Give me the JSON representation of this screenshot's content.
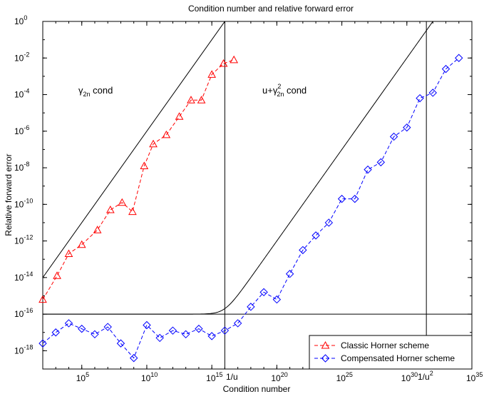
{
  "chart_data": {
    "type": "line",
    "title": "Condition number and relative forward error",
    "xlabel": "Condition number",
    "ylabel": "Relative forward error",
    "xscale": "log",
    "yscale": "log",
    "xlim_exp": [
      2,
      35
    ],
    "ylim_exp": [
      -19,
      0
    ],
    "xticks": [
      {
        "exp": 5,
        "base": "10",
        "sup": "5"
      },
      {
        "exp": 10,
        "base": "10",
        "sup": "10"
      },
      {
        "exp": 15,
        "base": "10",
        "sup": "15"
      },
      {
        "exp": 20,
        "base": "10",
        "sup": "20"
      },
      {
        "exp": 25,
        "base": "10",
        "sup": "25"
      },
      {
        "exp": 30,
        "base": "10",
        "sup": "30"
      },
      {
        "exp": 35,
        "base": "10",
        "sup": "35"
      }
    ],
    "yticks": [
      {
        "exp": 0,
        "text": "10",
        "sup": "0"
      },
      {
        "exp": -2,
        "text": "10",
        "sup": "-2"
      },
      {
        "exp": -4,
        "text": "10",
        "sup": "-4"
      },
      {
        "exp": -6,
        "text": "10",
        "sup": "-6"
      },
      {
        "exp": -8,
        "text": "10",
        "sup": "-8"
      },
      {
        "exp": -10,
        "text": "10",
        "sup": "-10"
      },
      {
        "exp": -12,
        "text": "10",
        "sup": "-12"
      },
      {
        "exp": -14,
        "text": "10",
        "sup": "-14"
      },
      {
        "exp": -16,
        "text": "10",
        "sup": "-16"
      },
      {
        "exp": -18,
        "text": "10",
        "sup": "-18"
      }
    ],
    "legend_position": "bottom-right",
    "grid": false,
    "series": [
      {
        "name": "Classic Horner scheme",
        "color": "#ff0000",
        "marker": "triangle",
        "line_style": "dashed",
        "log10_x": [
          2.0,
          3.1,
          4.0,
          5.0,
          6.2,
          7.2,
          8.1,
          8.9,
          9.8,
          10.5,
          11.5,
          12.5,
          13.4,
          14.2,
          15.0,
          15.9,
          16.7
        ],
        "log10_y": [
          -15.2,
          -13.9,
          -12.7,
          -12.2,
          -11.4,
          -10.3,
          -9.9,
          -10.4,
          -7.9,
          -6.7,
          -6.2,
          -5.2,
          -4.3,
          -4.3,
          -2.9,
          -2.3,
          -2.1
        ]
      },
      {
        "name": "Compensated Horner scheme",
        "color": "#0000ff",
        "marker": "diamond",
        "line_style": "dashed",
        "log10_x": [
          2.0,
          3.0,
          4.0,
          5.0,
          6.0,
          7.0,
          8.0,
          9.0,
          10.0,
          11.0,
          12.0,
          13.0,
          14.0,
          15.0,
          16.0,
          17.0,
          18.0,
          19.0,
          20.0,
          21.0,
          22.0,
          23.0,
          24.0,
          25.0,
          26.0,
          27.0,
          28.0,
          29.0,
          30.0,
          31.0,
          32.0,
          33.0,
          34.0
        ],
        "log10_y": [
          -17.6,
          -17.0,
          -16.5,
          -16.8,
          -17.1,
          -16.7,
          -17.6,
          -18.4,
          -16.6,
          -17.3,
          -16.9,
          -17.1,
          -16.8,
          -17.2,
          -16.9,
          -16.5,
          -15.6,
          -14.8,
          -15.2,
          -13.8,
          -12.5,
          -11.7,
          -11.0,
          -9.7,
          -9.7,
          -8.1,
          -7.7,
          -6.3,
          -5.8,
          -4.2,
          -3.9,
          -2.6,
          -2.0
        ]
      }
    ],
    "reference_lines": [
      {
        "kind": "power",
        "slope": 1,
        "offset": -16,
        "color": "#000000"
      },
      {
        "kind": "floor",
        "value_exp": -16,
        "color": "#000000"
      },
      {
        "kind": "curve",
        "color": "#000000"
      },
      {
        "kind": "vertical",
        "exp": 16.0,
        "color": "#000000"
      },
      {
        "kind": "vertical",
        "exp": 31.5,
        "color": "#000000"
      }
    ]
  },
  "annotations": {
    "gamma_label_main": "γ",
    "gamma_label_sub": "2n",
    "gamma_label_rest": " cond",
    "u_gamma_prefix": "u+γ",
    "u_gamma_sup": "2",
    "u_gamma_sub": "2n",
    "u_gamma_rest": " cond",
    "one_over_u": "1/u",
    "one_over_u2_base": "1/u",
    "one_over_u2_sup": "2"
  }
}
